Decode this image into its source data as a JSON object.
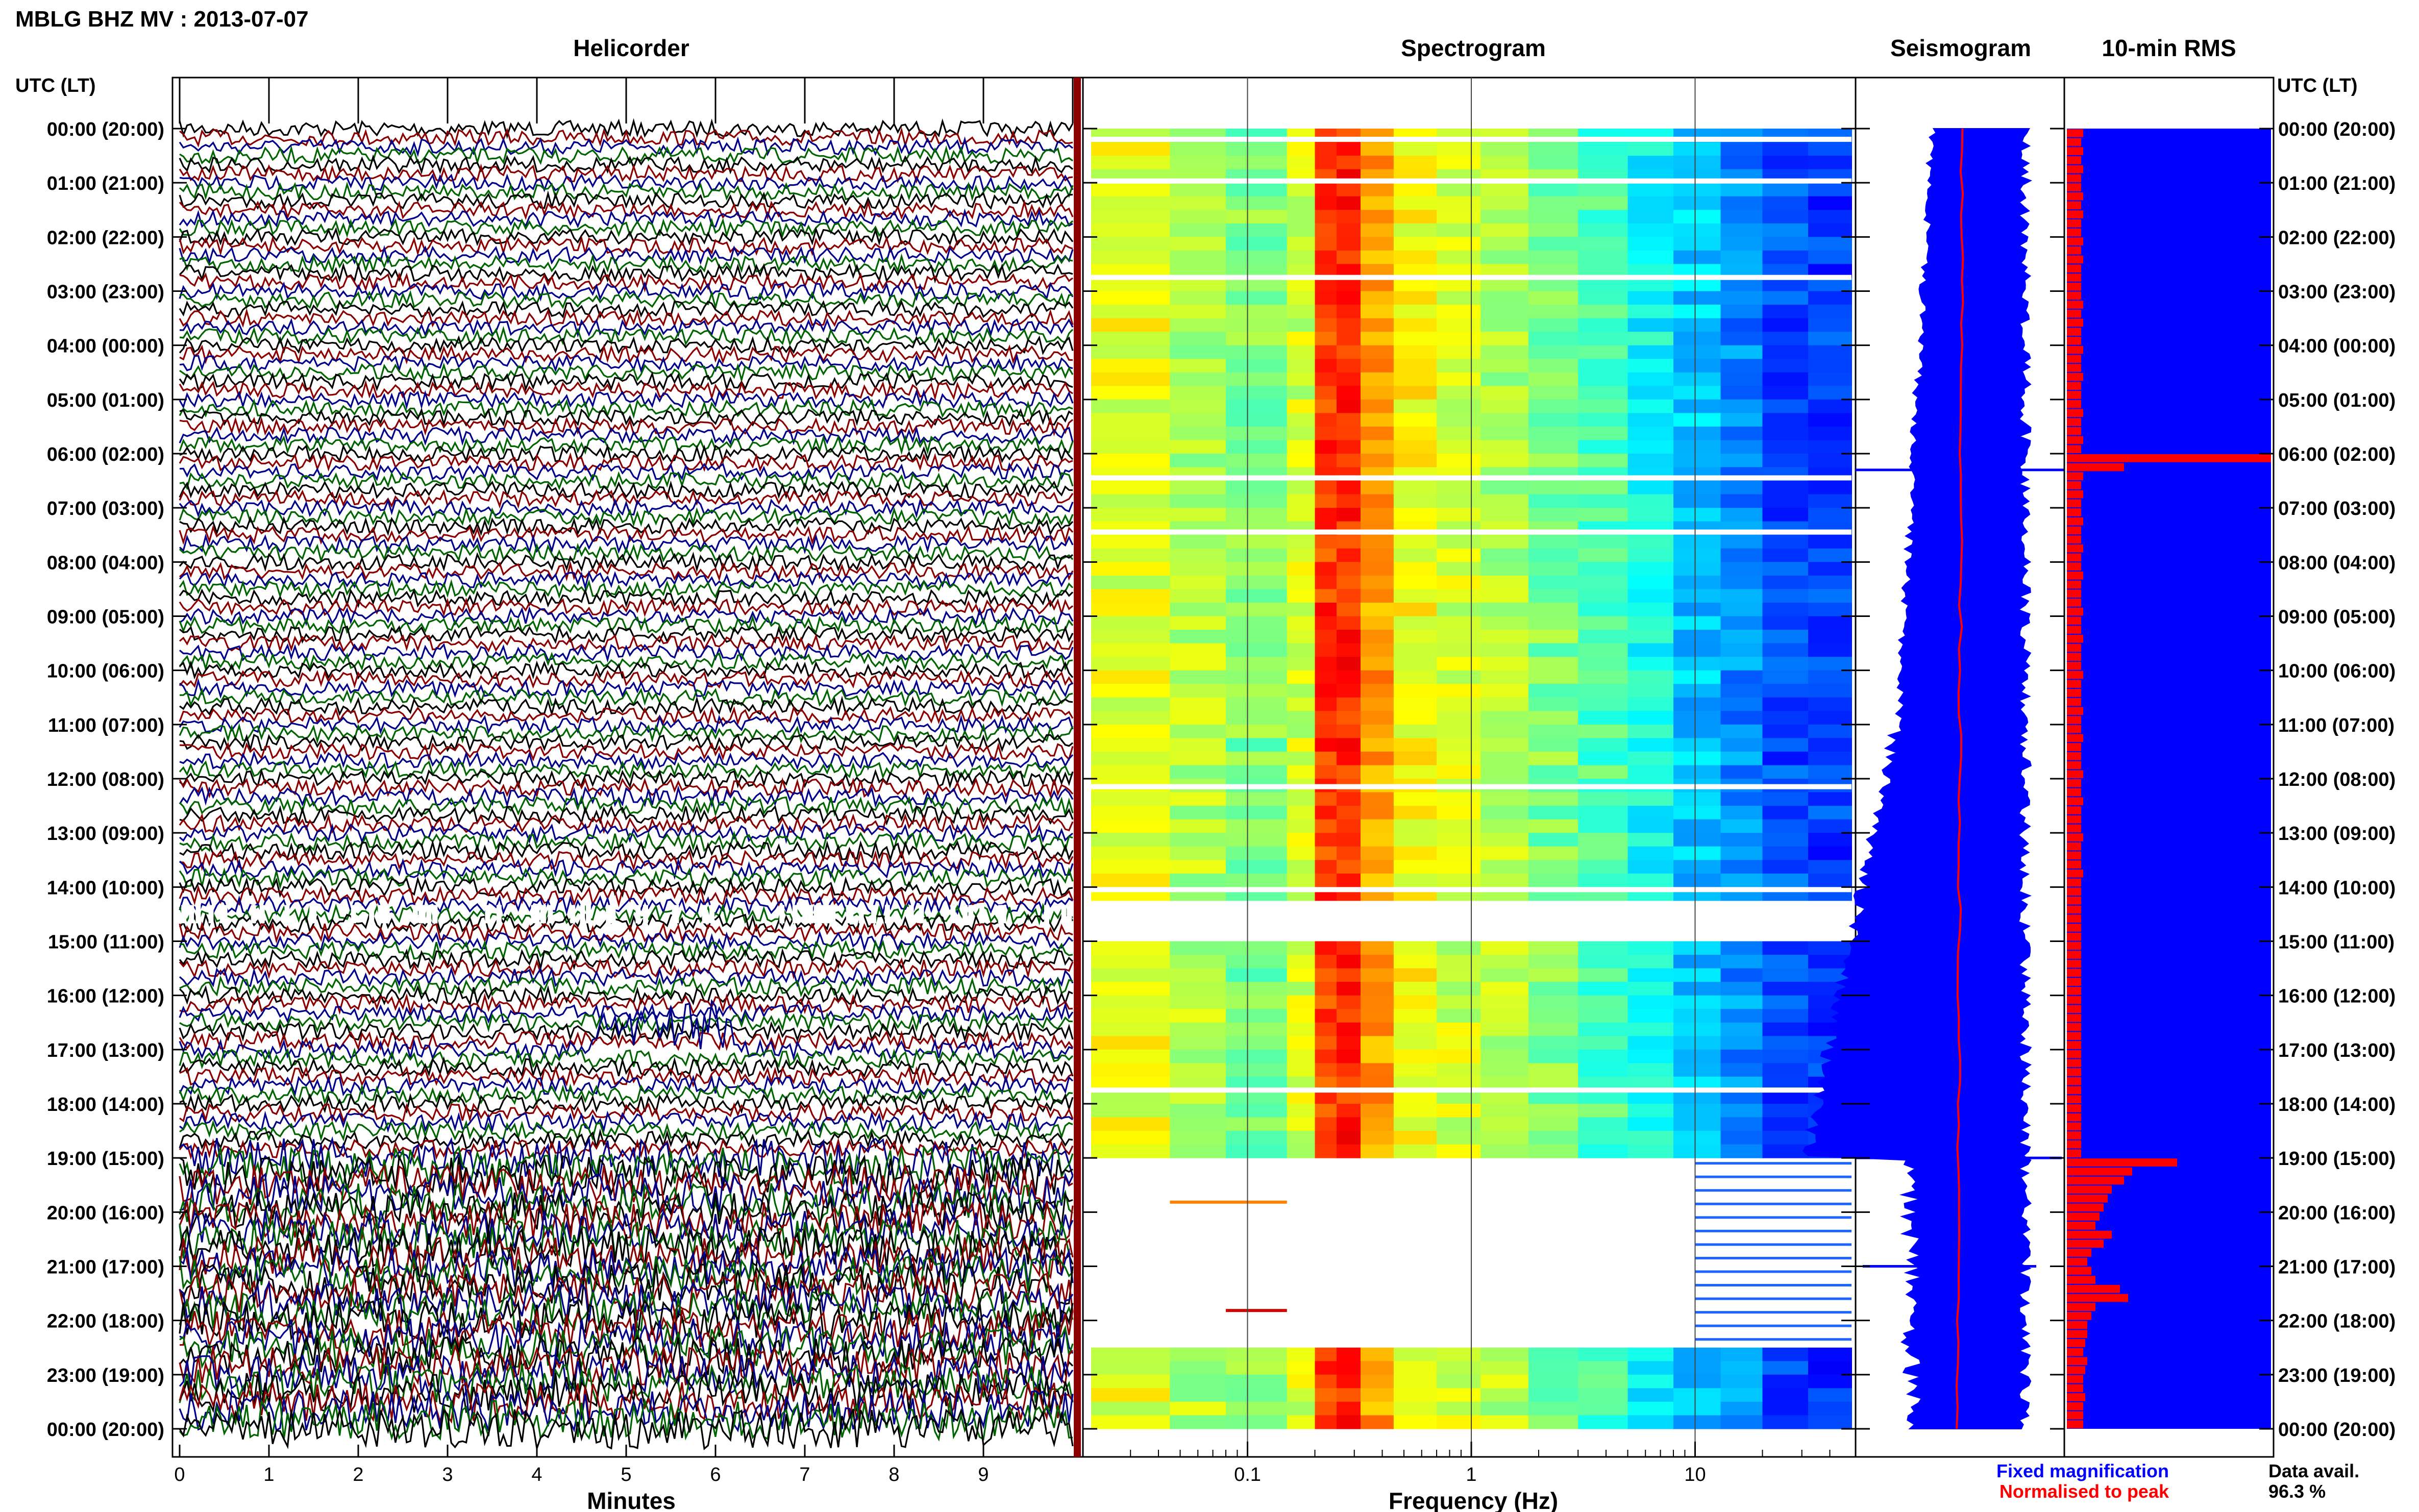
{
  "header": {
    "station_title": "MBLG BHZ MV : 2013-07-07"
  },
  "panels": {
    "helicorder": "Helicorder",
    "spectrogram": "Spectrogram",
    "seismogram": "Seismogram",
    "rms": "10-min RMS"
  },
  "axis_labels": {
    "time_left": "UTC (LT)",
    "time_right": "UTC (LT)",
    "minutes": "Minutes",
    "frequency": "Frequency (Hz)"
  },
  "legend": {
    "fixed": "Fixed magnification",
    "normalised": "Normalised to peak",
    "fixed_color": "#0000ff",
    "normalised_color": "#ff0000"
  },
  "data_availability": {
    "label": "Data avail.",
    "value": "96.3 %"
  },
  "colors": {
    "trace_cycle": [
      "#000000",
      "#8b0000",
      "#00008b",
      "#006400"
    ],
    "seismogram": "#0000ff",
    "rms_bar": "#ff0000",
    "rms_background": "#0000ff"
  },
  "chart_data": [
    {
      "type": "line",
      "title": "Helicorder",
      "xlabel": "Minutes",
      "x_ticks": [
        "0",
        "1",
        "2",
        "3",
        "4",
        "5",
        "6",
        "7",
        "8",
        "9"
      ],
      "xlim": [
        0,
        10
      ],
      "y_ticks": [
        "00:00 (20:00)",
        "01:00 (21:00)",
        "02:00 (22:00)",
        "03:00 (23:00)",
        "04:00 (00:00)",
        "05:00 (01:00)",
        "06:00 (02:00)",
        "07:00 (03:00)",
        "08:00 (04:00)",
        "09:00 (05:00)",
        "10:00 (06:00)",
        "11:00 (07:00)",
        "12:00 (08:00)",
        "13:00 (09:00)",
        "14:00 (10:00)",
        "15:00 (11:00)",
        "16:00 (12:00)",
        "17:00 (13:00)",
        "18:00 (14:00)",
        "19:00 (15:00)",
        "20:00 (16:00)",
        "21:00 (17:00)",
        "22:00 (18:00)",
        "23:00 (19:00)",
        "00:00 (20:00)"
      ],
      "rows": 144,
      "high_activity_hours": [
        19,
        24
      ],
      "gap_hour": 14.5
    },
    {
      "type": "heatmap",
      "title": "Spectrogram",
      "xlabel": "Frequency (Hz)",
      "x_scale": "log",
      "x_ticks": [
        "0.1",
        "1",
        "10"
      ],
      "xlim": [
        0.02,
        50
      ],
      "colormap": "jet",
      "peak_band_hz": [
        0.2,
        0.35
      ]
    },
    {
      "type": "line",
      "title": "Seismogram",
      "series": [
        {
          "name": "Fixed magnification",
          "color": "#0000ff"
        },
        {
          "name": "Normalised to peak",
          "color": "#ff0000"
        }
      ]
    },
    {
      "type": "bar",
      "title": "10-min RMS",
      "values": [
        0.08,
        0.07,
        0.08,
        0.07,
        0.08,
        0.07,
        0.07,
        0.08,
        0.07,
        0.08,
        0.07,
        0.07,
        0.08,
        0.07,
        0.08,
        0.07,
        0.07,
        0.07,
        0.07,
        0.08,
        0.07,
        0.08,
        0.07,
        0.07,
        0.08,
        0.07,
        0.07,
        0.08,
        0.07,
        0.07,
        0.07,
        0.08,
        0.07,
        0.07,
        0.08,
        0.07,
        1.0,
        0.28,
        0.08,
        0.07,
        0.08,
        0.07,
        0.07,
        0.08,
        0.07,
        0.07,
        0.08,
        0.07,
        0.07,
        0.08,
        0.07,
        0.07,
        0.07,
        0.08,
        0.07,
        0.07,
        0.08,
        0.07,
        0.07,
        0.07,
        0.08,
        0.07,
        0.07,
        0.07,
        0.08,
        0.07,
        0.07,
        0.08,
        0.07,
        0.07,
        0.07,
        0.08,
        0.07,
        0.07,
        0.08,
        0.07,
        0.07,
        0.07,
        0.08,
        0.07,
        0.07,
        0.07,
        0.08,
        0.07,
        0.07,
        0.07,
        0.07,
        0.07,
        0.07,
        0.07,
        0.07,
        0.07,
        0.07,
        0.07,
        0.07,
        0.07,
        0.07,
        0.07,
        0.07,
        0.07,
        0.07,
        0.07,
        0.07,
        0.07,
        0.07,
        0.07,
        0.07,
        0.07,
        0.07,
        0.07,
        0.07,
        0.07,
        0.07,
        0.07,
        0.54,
        0.32,
        0.28,
        0.22,
        0.2,
        0.18,
        0.16,
        0.14,
        0.22,
        0.18,
        0.12,
        0.1,
        0.12,
        0.14,
        0.26,
        0.3,
        0.14,
        0.12,
        0.1,
        0.1,
        0.09,
        0.08,
        0.1,
        0.09,
        0.08,
        0.08,
        0.09,
        0.08,
        0.08,
        0.08
      ]
    }
  ]
}
